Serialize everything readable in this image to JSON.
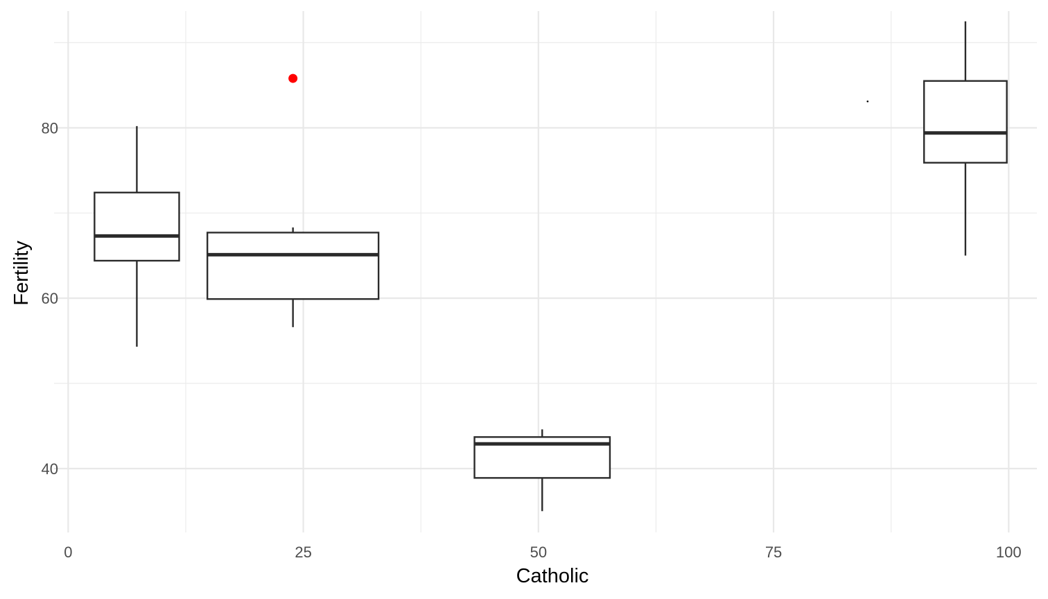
{
  "chart_data": {
    "type": "boxplot",
    "xlabel": "Catholic",
    "ylabel": "Fertility",
    "xlim": [
      -1.5,
      103
    ],
    "ylim": [
      32.5,
      93.7
    ],
    "x_ticks": [
      0,
      25,
      50,
      75,
      100
    ],
    "y_ticks": [
      40,
      60,
      80
    ],
    "x_minor_ticks": [
      12.5,
      37.5,
      62.5,
      87.5
    ],
    "y_minor_ticks": [
      50,
      70,
      90
    ],
    "grid": true,
    "legend": "none",
    "boxes": [
      {
        "x_left": 2.8,
        "x_right": 11.8,
        "x_center": 7.3,
        "lower_whisker": 54.3,
        "q1": 64.4,
        "median": 67.3,
        "q3": 72.4,
        "upper_whisker": 80.2
      },
      {
        "x_left": 14.8,
        "x_right": 33.0,
        "x_center": 23.9,
        "lower_whisker": 56.6,
        "q1": 59.9,
        "median": 65.1,
        "q3": 67.7,
        "upper_whisker": 68.3
      },
      {
        "x_left": 43.2,
        "x_right": 57.6,
        "x_center": 50.4,
        "lower_whisker": 35.0,
        "q1": 38.9,
        "median": 42.9,
        "q3": 43.7,
        "upper_whisker": 44.6
      },
      {
        "x_left": 91.0,
        "x_right": 99.8,
        "x_center": 95.4,
        "lower_whisker": 65.0,
        "q1": 75.9,
        "median": 79.4,
        "q3": 85.5,
        "upper_whisker": 92.5
      }
    ],
    "outliers": [
      {
        "x": 23.9,
        "y": 85.8,
        "color": "#ff0000",
        "size": "large"
      },
      {
        "x": 85.0,
        "y": 83.1,
        "color": "#000000",
        "size": "tiny"
      }
    ]
  }
}
